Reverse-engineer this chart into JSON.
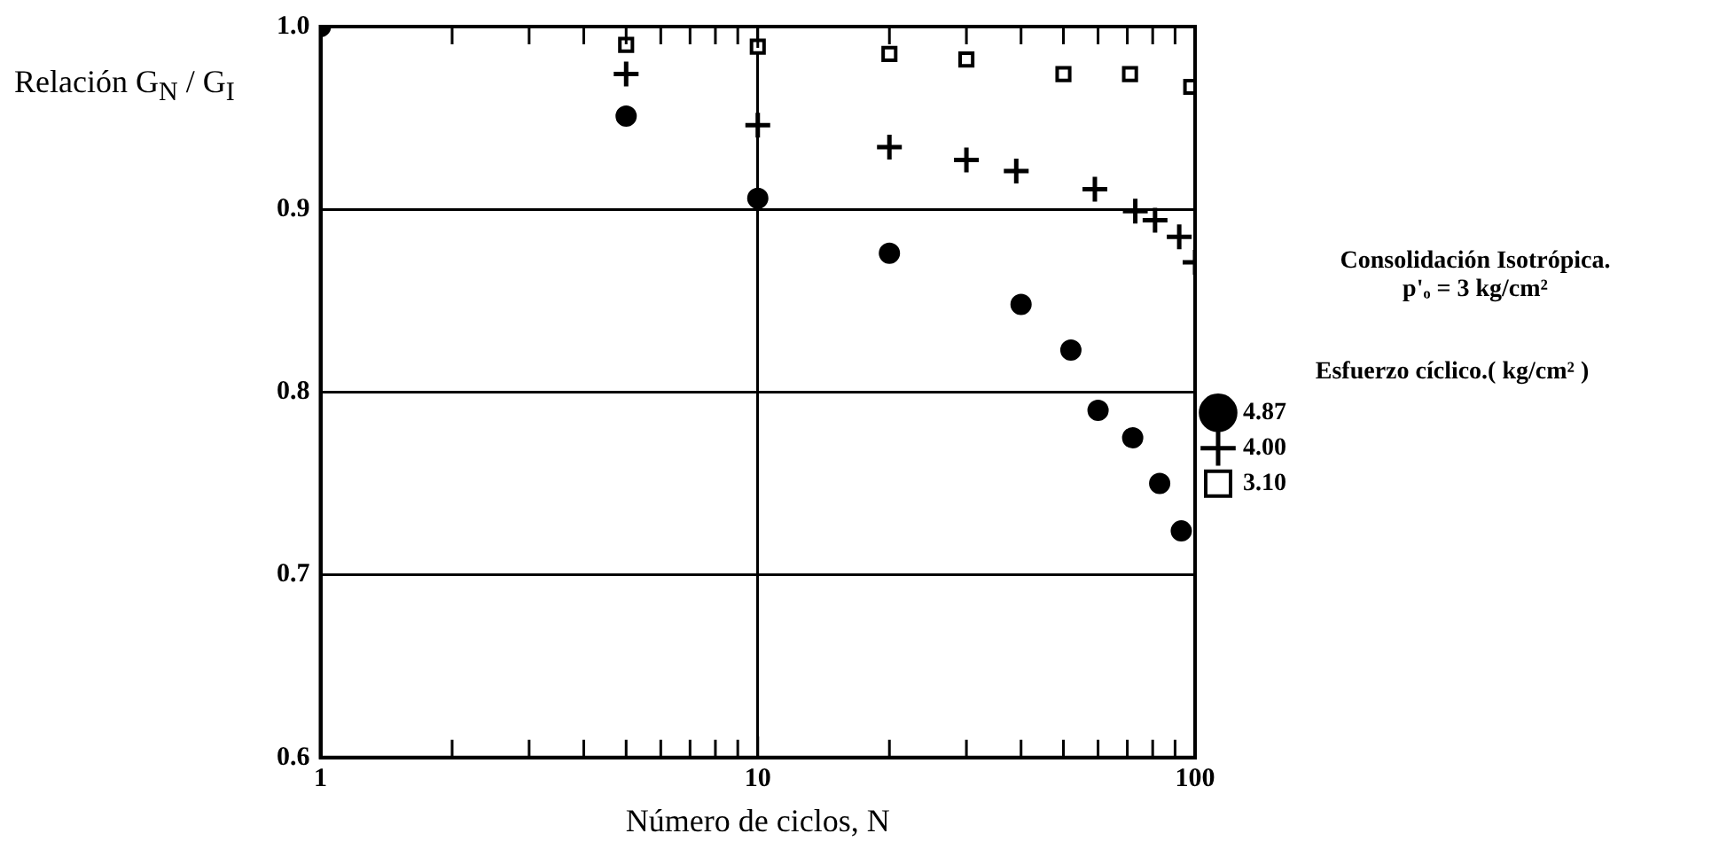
{
  "chart_data": {
    "type": "scatter",
    "xlabel": "Número de ciclos, N",
    "ylabel": "Relación G$_{N}$ / G$_{I}$",
    "legend_title": "Esfuerzo cíclico.( kg/cm² )",
    "annotations": [
      "Consolidación Isotrópica.",
      "p'ₒ = 3 kg/cm²"
    ],
    "log": "x",
    "xlim": [
      1,
      100
    ],
    "ylim": [
      0.6,
      1.0
    ],
    "xticks": [
      1,
      {
        "value": 2,
        "label": null
      },
      {
        "value": 3,
        "label": null
      },
      {
        "value": 4,
        "label": null
      },
      {
        "value": 5,
        "label": null
      },
      {
        "value": 6,
        "label": null
      },
      {
        "value": 7,
        "label": null
      },
      {
        "value": 8,
        "label": null
      },
      {
        "value": 9,
        "label": null
      },
      10,
      {
        "value": 20,
        "label": null
      },
      {
        "value": 30,
        "label": null
      },
      {
        "value": 40,
        "label": null
      },
      {
        "value": 50,
        "label": null
      },
      {
        "value": 60,
        "label": null
      },
      {
        "value": 70,
        "label": null
      },
      {
        "value": 80,
        "label": null
      },
      {
        "value": 90,
        "label": null
      },
      100
    ],
    "yticks": [
      {
        "value": 0.6,
        "label": "0.6"
      },
      {
        "value": 0.7,
        "label": "0.7"
      },
      {
        "value": 0.8,
        "label": "0.8"
      },
      {
        "value": 0.9,
        "label": "0.9"
      },
      {
        "value": 1.0,
        "label": "1.0"
      }
    ],
    "grid": true,
    "legend": "right",
    "series": [
      {
        "name": "4.87",
        "color": "#000000",
        "marker": "circle",
        "x": [
          1,
          5,
          10,
          20,
          40,
          52,
          60,
          72,
          83,
          93
        ],
        "values": [
          1.0,
          0.951,
          0.906,
          0.876,
          0.848,
          0.823,
          0.79,
          0.775,
          0.75,
          0.724
        ]
      },
      {
        "name": "4.00",
        "color": "#000000",
        "marker": "cross",
        "x": [
          5,
          10,
          20,
          30,
          39,
          59,
          73,
          81,
          92,
          100
        ],
        "values": [
          0.974,
          0.946,
          0.934,
          0.927,
          0.921,
          0.911,
          0.899,
          0.894,
          0.885,
          0.871
        ]
      },
      {
        "name": "3.10",
        "color": "#000000",
        "marker": "square",
        "x": [
          5,
          10,
          20,
          30,
          50,
          71,
          98
        ],
        "values": [
          0.99,
          0.989,
          0.985,
          0.982,
          0.974,
          0.974,
          0.967
        ]
      }
    ]
  }
}
